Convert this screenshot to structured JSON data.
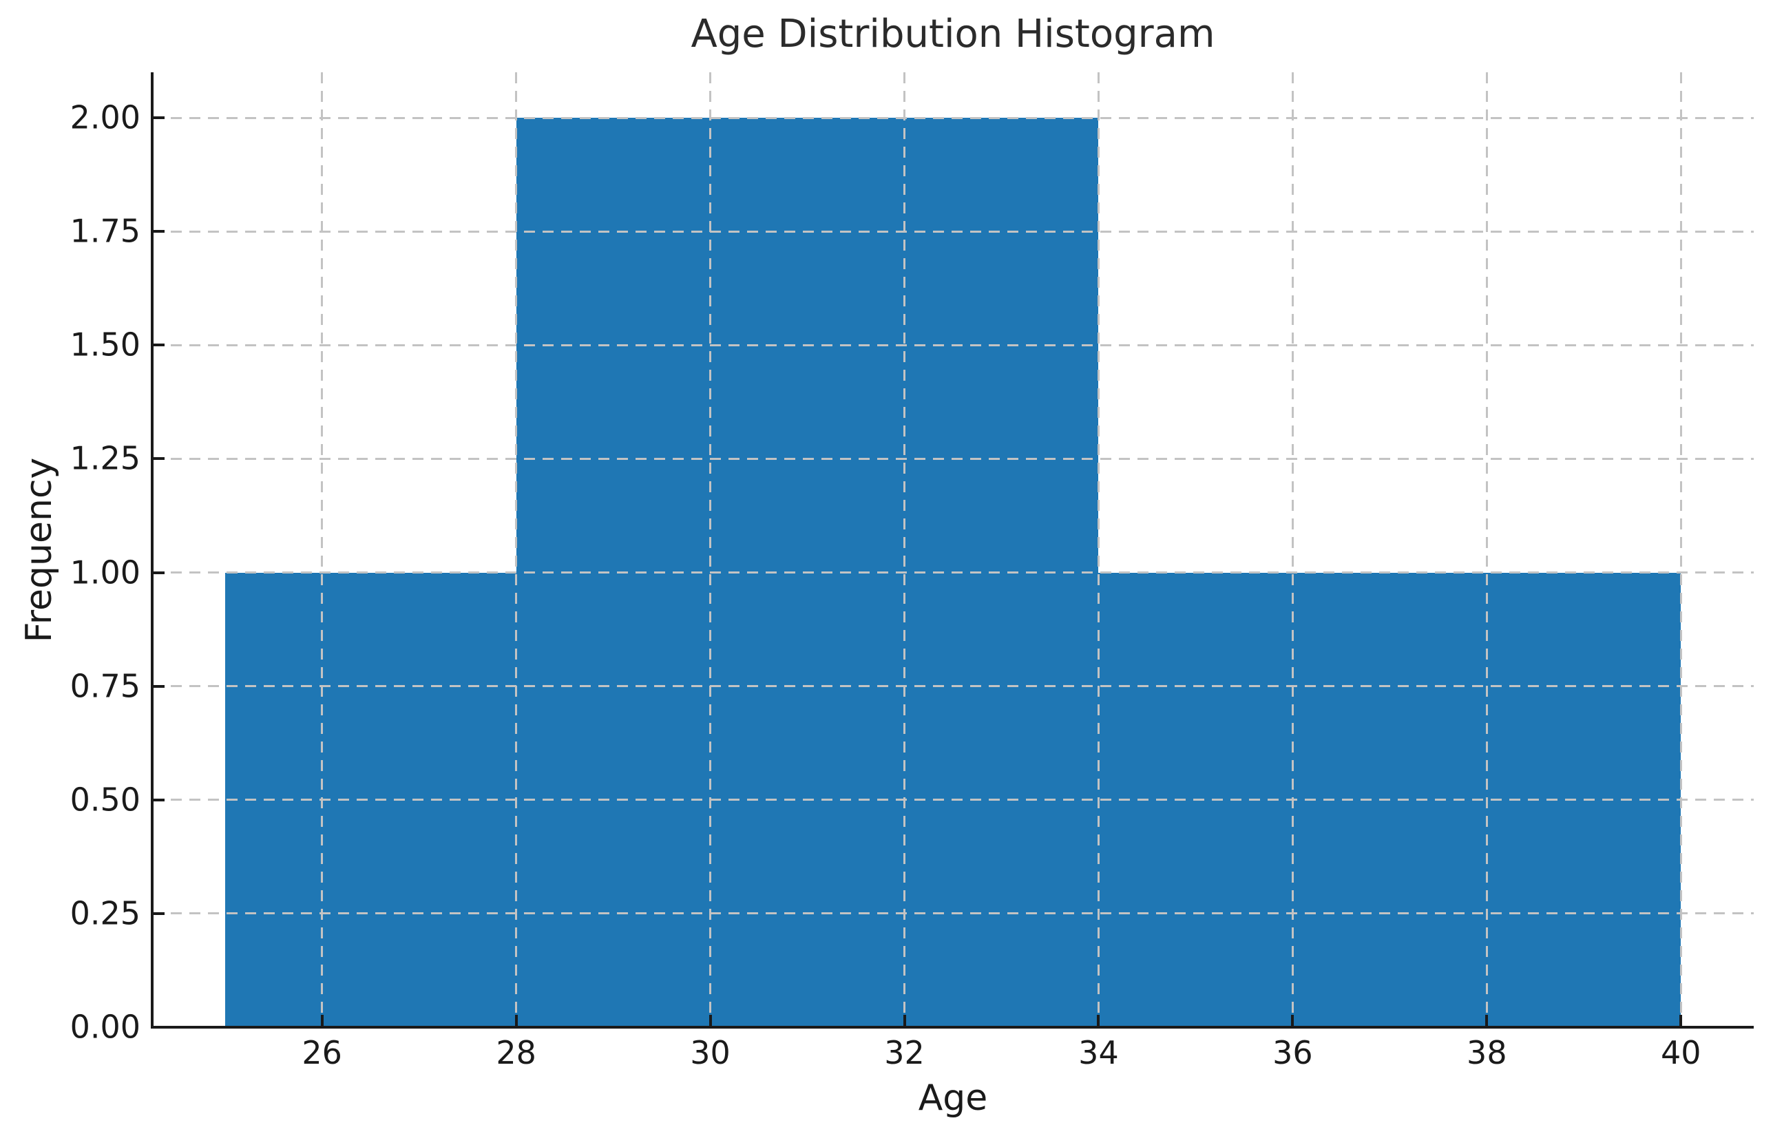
{
  "chart_data": {
    "type": "bar",
    "subtype": "histogram",
    "title": "Age Distribution Histogram",
    "xlabel": "Age",
    "ylabel": "Frequency",
    "xlim": [
      24.25,
      40.75
    ],
    "ylim": [
      0,
      2.1
    ],
    "x_ticks": [
      {
        "value": 26,
        "label": "26"
      },
      {
        "value": 28,
        "label": "28"
      },
      {
        "value": 30,
        "label": "30"
      },
      {
        "value": 32,
        "label": "32"
      },
      {
        "value": 34,
        "label": "34"
      },
      {
        "value": 36,
        "label": "36"
      },
      {
        "value": 38,
        "label": "38"
      },
      {
        "value": 40,
        "label": "40"
      }
    ],
    "y_ticks": [
      {
        "value": 0,
        "label": "0.00"
      },
      {
        "value": 0.25,
        "label": "0.25"
      },
      {
        "value": 0.5,
        "label": "0.50"
      },
      {
        "value": 0.75,
        "label": "0.75"
      },
      {
        "value": 1,
        "label": "1.00"
      },
      {
        "value": 1.25,
        "label": "1.25"
      },
      {
        "value": 1.5,
        "label": "1.50"
      },
      {
        "value": 1.75,
        "label": "1.75"
      },
      {
        "value": 2,
        "label": "2.00"
      }
    ],
    "bars": [
      {
        "x_start": 25,
        "x_end": 28,
        "frequency": 1
      },
      {
        "x_start": 28,
        "x_end": 34,
        "frequency": 2
      },
      {
        "x_start": 34,
        "x_end": 40,
        "frequency": 1
      }
    ],
    "grid": {
      "visible": true,
      "style": "dashed",
      "which": "both"
    },
    "legend": null,
    "styles": {
      "bar_color": "#1f77b4",
      "grid_color": "#c3c3c3",
      "axis_color": "#1a1a1a",
      "text_color": "#1a1a1a",
      "background": "#ffffff"
    }
  }
}
